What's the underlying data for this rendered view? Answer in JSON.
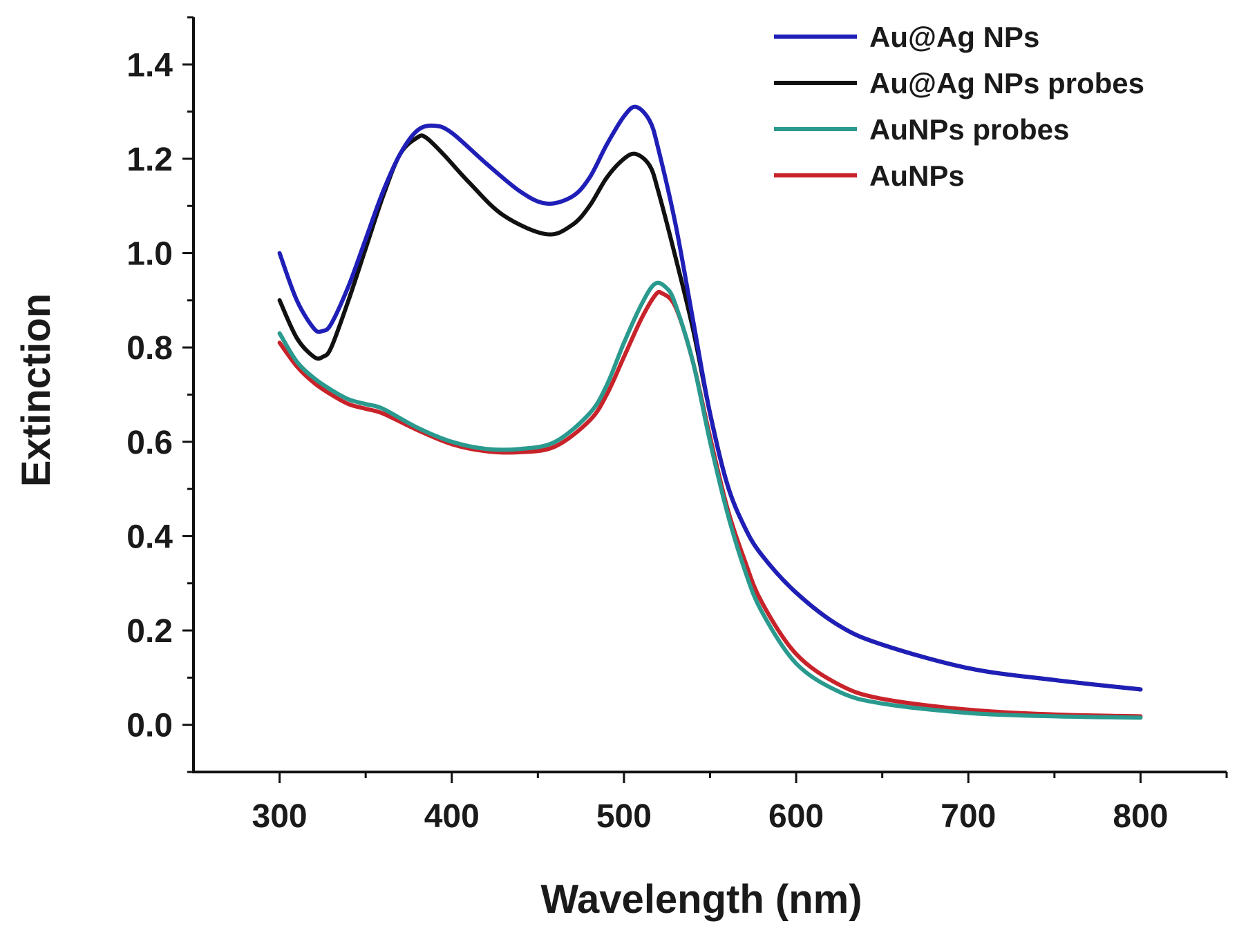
{
  "chart_data": {
    "type": "line",
    "title": "",
    "xlabel": "Wavelength (nm)",
    "ylabel": "Extinction",
    "xlim": [
      250,
      850
    ],
    "ylim": [
      -0.1,
      1.5
    ],
    "xticks": [
      300,
      400,
      500,
      600,
      700,
      800
    ],
    "xtick_labels": [
      "300",
      "400",
      "500",
      "600",
      "700",
      "800"
    ],
    "yticks": [
      0.0,
      0.2,
      0.4,
      0.6,
      0.8,
      1.0,
      1.2,
      1.4
    ],
    "ytick_labels": [
      "0.0",
      "0.2",
      "0.4",
      "0.6",
      "0.8",
      "1.0",
      "1.2",
      "1.4"
    ],
    "grid": false,
    "legend_position": "top-right",
    "series": [
      {
        "name": "Au@Ag NPs",
        "color": "#1f1fb8",
        "x": [
          300,
          310,
          320,
          325,
          330,
          340,
          350,
          360,
          370,
          380,
          390,
          400,
          420,
          440,
          455,
          470,
          480,
          490,
          500,
          507,
          515,
          520,
          530,
          540,
          550,
          560,
          570,
          580,
          600,
          625,
          650,
          700,
          750,
          800
        ],
        "y": [
          1.0,
          0.9,
          0.84,
          0.835,
          0.85,
          0.93,
          1.03,
          1.13,
          1.21,
          1.26,
          1.27,
          1.255,
          1.19,
          1.13,
          1.105,
          1.12,
          1.16,
          1.23,
          1.29,
          1.31,
          1.28,
          1.22,
          1.06,
          0.86,
          0.66,
          0.51,
          0.42,
          0.36,
          0.28,
          0.21,
          0.17,
          0.12,
          0.095,
          0.075
        ]
      },
      {
        "name": "Au@Ag NPs probes",
        "color": "#111111",
        "x": [
          300,
          310,
          320,
          325,
          330,
          340,
          350,
          360,
          370,
          380,
          385,
          395,
          410,
          430,
          455,
          470,
          480,
          490,
          500,
          507,
          515,
          520,
          530,
          540,
          550,
          560,
          570,
          580,
          600,
          625,
          650,
          700,
          750,
          800
        ],
        "y": [
          0.9,
          0.82,
          0.78,
          0.78,
          0.8,
          0.9,
          1.01,
          1.12,
          1.21,
          1.245,
          1.245,
          1.21,
          1.15,
          1.08,
          1.04,
          1.06,
          1.1,
          1.16,
          1.2,
          1.21,
          1.185,
          1.13,
          0.99,
          0.84,
          0.66,
          0.51,
          0.42,
          0.36,
          0.28,
          0.21,
          0.17,
          0.12,
          0.095,
          0.075
        ]
      },
      {
        "name": "AuNPs probes",
        "color": "#2a9a8e",
        "x": [
          300,
          310,
          320,
          330,
          340,
          350,
          360,
          380,
          400,
          420,
          440,
          460,
          480,
          490,
          500,
          510,
          518,
          525,
          530,
          540,
          550,
          560,
          570,
          580,
          600,
          625,
          650,
          700,
          750,
          800
        ],
        "y": [
          0.83,
          0.77,
          0.735,
          0.71,
          0.69,
          0.68,
          0.67,
          0.63,
          0.6,
          0.585,
          0.585,
          0.6,
          0.66,
          0.72,
          0.81,
          0.89,
          0.935,
          0.925,
          0.89,
          0.77,
          0.6,
          0.45,
          0.33,
          0.24,
          0.13,
          0.07,
          0.045,
          0.025,
          0.018,
          0.015
        ]
      },
      {
        "name": "AuNPs",
        "color": "#c8232a",
        "x": [
          300,
          310,
          320,
          330,
          340,
          350,
          360,
          380,
          400,
          420,
          440,
          460,
          480,
          490,
          500,
          510,
          518,
          522,
          530,
          540,
          550,
          560,
          570,
          580,
          600,
          625,
          650,
          700,
          750,
          800
        ],
        "y": [
          0.81,
          0.76,
          0.725,
          0.7,
          0.68,
          0.67,
          0.66,
          0.625,
          0.595,
          0.58,
          0.578,
          0.59,
          0.645,
          0.7,
          0.78,
          0.86,
          0.91,
          0.915,
          0.885,
          0.77,
          0.61,
          0.46,
          0.35,
          0.26,
          0.15,
          0.085,
          0.055,
          0.032,
          0.022,
          0.018
        ]
      }
    ]
  }
}
